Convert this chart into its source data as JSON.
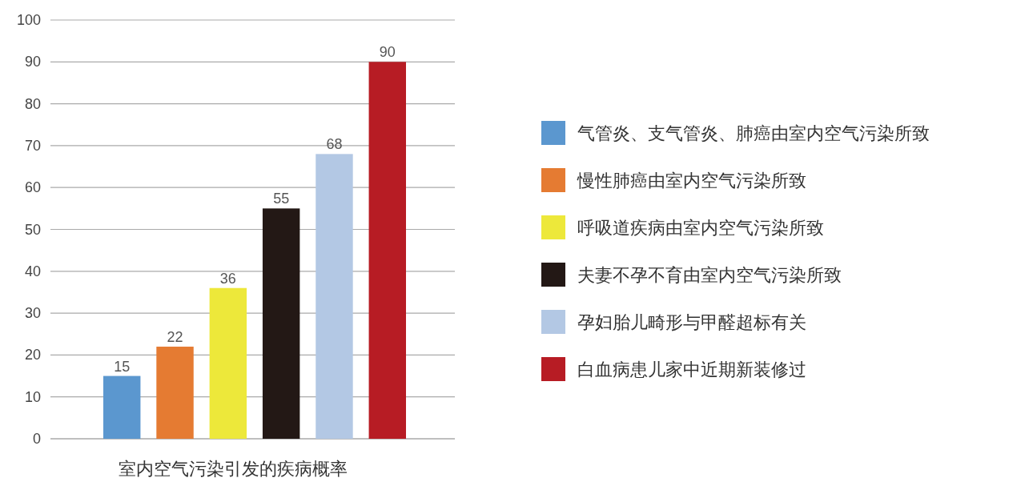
{
  "chart_data": {
    "type": "bar",
    "xlabel": "室内空气污染引发的疾病概率",
    "categories": [
      null
    ],
    "series": [
      {
        "name": "气管炎、支气管炎、肺癌由室内空气污染所致",
        "color": "#5b97cf",
        "values": [
          15
        ]
      },
      {
        "name": "慢性肺癌由室内空气污染所致",
        "color": "#e57b32",
        "values": [
          22
        ]
      },
      {
        "name": "呼吸道疾病由室内空气污染所致",
        "color": "#ede83a",
        "values": [
          36
        ]
      },
      {
        "name": "夫妻不孕不育由室内空气污染所致",
        "color": "#231815",
        "values": [
          55
        ]
      },
      {
        "name": "孕妇胎儿畸形与甲醛超标有关",
        "color": "#b3c8e4",
        "values": [
          68
        ]
      },
      {
        "name": "白血病患儿家中近期新装修过",
        "color": "#b71c24",
        "values": [
          90
        ]
      }
    ],
    "ylim": [
      0,
      100
    ],
    "yticks": [
      0,
      10,
      20,
      30,
      40,
      50,
      60,
      70,
      80,
      90,
      100
    ],
    "grid": "y",
    "data_labels": true,
    "legend": "right"
  }
}
